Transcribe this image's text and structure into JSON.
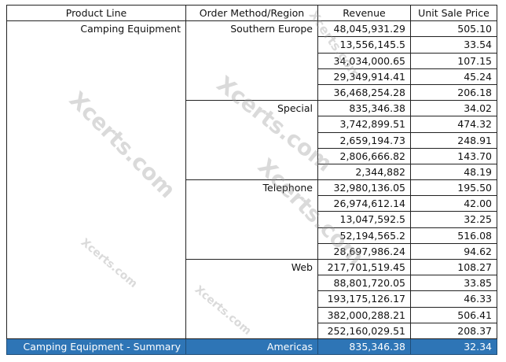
{
  "headers": [
    "Product Line",
    "Order Method/Region",
    "Revenue",
    "Unit Sale Price"
  ],
  "product_line": "Camping Equipment",
  "groups": [
    {
      "method": "Southern Europe",
      "rows": [
        [
          "48,045,931.29",
          "505.10"
        ],
        [
          "13,556,145.5",
          "33.54"
        ],
        [
          "34,034,000.65",
          "107.15"
        ],
        [
          "29,349,914.41",
          "45.24"
        ],
        [
          "36,468,254.28",
          "206.18"
        ]
      ]
    },
    {
      "method": "Special",
      "rows": [
        [
          "835,346.38",
          "34.02"
        ],
        [
          "3,742,899.51",
          "474.32"
        ],
        [
          "2,659,194.73",
          "248.91"
        ],
        [
          "2,806,666.82",
          "143.70"
        ],
        [
          "2,344,882",
          "48.19"
        ]
      ]
    },
    {
      "method": "Telephone",
      "rows": [
        [
          "32,980,136.05",
          "195.50"
        ],
        [
          "26,974,612.14",
          "42.00"
        ],
        [
          "13,047,592.5",
          "32.25"
        ],
        [
          "52,194,565.2",
          "516.08"
        ],
        [
          "28,697,986.24",
          "94.62"
        ]
      ]
    },
    {
      "method": "Web",
      "rows": [
        [
          "217,701,519.45",
          "108.27"
        ],
        [
          "88,801,720.05",
          "33.85"
        ],
        [
          "193,175,126.17",
          "46.33"
        ],
        [
          "382,000,288.21",
          "506.41"
        ],
        [
          "252,160,029.51",
          "208.37"
        ]
      ]
    }
  ],
  "summary": {
    "label": "Camping Equipment - Summary",
    "region": "Americas",
    "revenue": "835,346.38",
    "price": "32.34"
  },
  "colors": {
    "summary_bg": "#2e75b6",
    "summary_text": "#ffffff"
  },
  "watermark": "Xcerts.com"
}
